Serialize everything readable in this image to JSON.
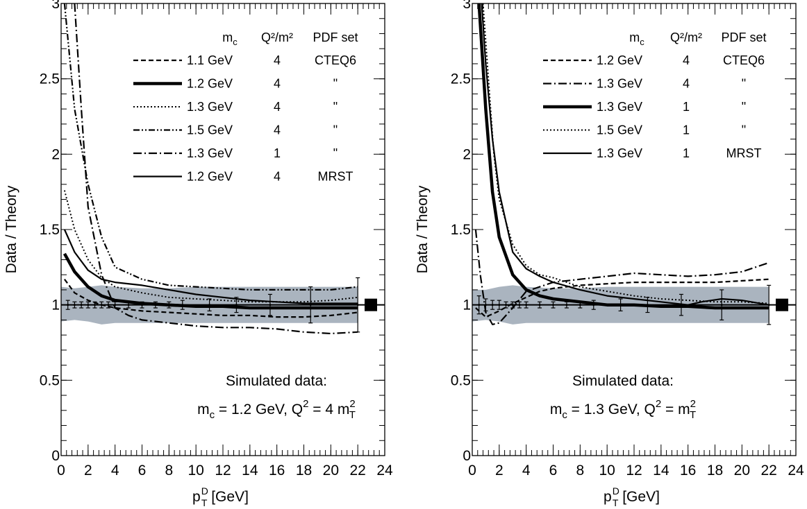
{
  "chart_data": [
    {
      "type": "line",
      "xlabel": "p_T^D [GeV]",
      "ylabel": "Data / Theory",
      "xlim": [
        0,
        24
      ],
      "ylim": [
        0,
        3
      ],
      "x_ticks": [
        "0",
        "2",
        "4",
        "6",
        "8",
        "10",
        "12",
        "14",
        "16",
        "18",
        "20",
        "22",
        "24"
      ],
      "y_ticks": [
        "0",
        "0.5",
        "1",
        "1.5",
        "2",
        "2.5",
        "3"
      ],
      "legend_headers": [
        "m",
        "Q²/m²",
        "PDF set"
      ],
      "legend_rows": [
        {
          "style": "dashed",
          "mc": "1.1 GeV",
          "q2": "4",
          "pdf": "CTEQ6"
        },
        {
          "style": "thick",
          "mc": "1.2 GeV",
          "q2": "4",
          "pdf": "\""
        },
        {
          "style": "dotted",
          "mc": "1.3 GeV",
          "q2": "4",
          "pdf": "\""
        },
        {
          "style": "dashdotdot",
          "mc": "1.5 GeV",
          "q2": "4",
          "pdf": "\""
        },
        {
          "style": "dashdot",
          "mc": "1.3 GeV",
          "q2": "1",
          "pdf": "\""
        },
        {
          "style": "solid",
          "mc": "1.2 GeV",
          "q2": "4",
          "pdf": "MRST"
        }
      ],
      "series": [
        {
          "style": "dashed",
          "x": [
            0.25,
            1,
            2,
            3,
            4,
            6,
            8,
            10,
            12,
            14,
            16,
            18,
            20,
            22
          ],
          "y": [
            1.17,
            1.08,
            1.03,
            1.0,
            0.98,
            0.96,
            0.95,
            0.94,
            0.93,
            0.93,
            0.92,
            0.92,
            0.93,
            0.95
          ]
        },
        {
          "style": "thick",
          "x": [
            0.25,
            1,
            2,
            3,
            4,
            6,
            8,
            10,
            12,
            14,
            16,
            18,
            20,
            22
          ],
          "y": [
            1.34,
            1.22,
            1.12,
            1.06,
            1.03,
            1.01,
            1.0,
            0.99,
            0.99,
            0.98,
            0.98,
            0.98,
            0.98,
            0.98
          ]
        },
        {
          "style": "dotted",
          "x": [
            0.25,
            1,
            2,
            3,
            4,
            6,
            8,
            10,
            12,
            14,
            16,
            18,
            20,
            22
          ],
          "y": [
            1.76,
            1.5,
            1.3,
            1.18,
            1.12,
            1.08,
            1.05,
            1.04,
            1.03,
            1.02,
            1.02,
            1.02,
            1.03,
            1.05
          ]
        },
        {
          "style": "dashdotdot",
          "x": [
            0.25,
            1,
            2,
            3,
            4,
            6,
            8,
            10,
            12,
            14,
            16,
            18,
            20,
            22
          ],
          "y": [
            3.0,
            2.3,
            1.8,
            1.45,
            1.25,
            1.17,
            1.13,
            1.12,
            1.11,
            1.1,
            1.1,
            1.1,
            1.1,
            1.12
          ]
        },
        {
          "style": "dashdot",
          "x": [
            1.0,
            1.5,
            2,
            3,
            4,
            5,
            6,
            8,
            10,
            12,
            14,
            16,
            18,
            20,
            22
          ],
          "y": [
            3.0,
            2.3,
            1.65,
            1.2,
            0.98,
            0.93,
            0.9,
            0.88,
            0.86,
            0.85,
            0.85,
            0.84,
            0.82,
            0.81,
            0.82
          ]
        },
        {
          "style": "solid",
          "x": [
            0.25,
            1,
            2,
            3,
            4,
            6,
            8,
            10,
            12,
            14,
            16,
            18,
            20,
            22
          ],
          "y": [
            1.5,
            1.35,
            1.23,
            1.17,
            1.15,
            1.13,
            1.1,
            1.07,
            1.05,
            1.03,
            1.02,
            1.01,
            1.01,
            1.01
          ]
        }
      ],
      "band": {
        "x": [
          0,
          1,
          2,
          3,
          4,
          6,
          8,
          10,
          12,
          14,
          16,
          18,
          20,
          22
        ],
        "upper": [
          1.12,
          1.11,
          1.12,
          1.13,
          1.12,
          1.11,
          1.11,
          1.12,
          1.12,
          1.12,
          1.12,
          1.12,
          1.12,
          1.12
        ],
        "lower": [
          0.89,
          0.9,
          0.89,
          0.87,
          0.88,
          0.88,
          0.88,
          0.88,
          0.88,
          0.88,
          0.88,
          0.88,
          0.88,
          0.88
        ]
      },
      "data_points": {
        "x": [
          0.5,
          1,
          1.5,
          2,
          2.5,
          3,
          3.5,
          4,
          5,
          6,
          7,
          8,
          9,
          11,
          13,
          15.5,
          18.5,
          22
        ],
        "y": [
          1,
          1,
          1,
          1,
          1,
          1,
          1,
          1,
          1,
          1,
          1,
          1,
          1,
          1,
          1,
          1,
          1,
          1
        ],
        "err": [
          0.03,
          0.02,
          0.02,
          0.02,
          0.02,
          0.02,
          0.02,
          0.02,
          0.02,
          0.02,
          0.02,
          0.02,
          0.03,
          0.04,
          0.05,
          0.07,
          0.12,
          0.18
        ]
      },
      "annotations": {
        "line1": "Simulated data:",
        "line2_pre": "m",
        "line2_mid": " = 1.2 GeV, Q",
        "line2_post": " = 4 m"
      }
    },
    {
      "type": "line",
      "xlabel": "p_T^D [GeV]",
      "ylabel": "Data / Theory",
      "xlim": [
        0,
        24
      ],
      "ylim": [
        0,
        3
      ],
      "x_ticks": [
        "0",
        "2",
        "4",
        "6",
        "8",
        "10",
        "12",
        "14",
        "16",
        "18",
        "20",
        "22",
        "24"
      ],
      "y_ticks": [
        "0",
        "0.5",
        "1",
        "1.5",
        "2",
        "2.5",
        "3"
      ],
      "legend_headers": [
        "m",
        "Q²/m²",
        "PDF set"
      ],
      "legend_rows": [
        {
          "style": "dashed",
          "mc": "1.2 GeV",
          "q2": "4",
          "pdf": "CTEQ6"
        },
        {
          "style": "dashdot",
          "mc": "1.3 GeV",
          "q2": "4",
          "pdf": "\""
        },
        {
          "style": "thick",
          "mc": "1.3 GeV",
          "q2": "1",
          "pdf": "\""
        },
        {
          "style": "dotted",
          "mc": "1.5 GeV",
          "q2": "1",
          "pdf": "\""
        },
        {
          "style": "solid",
          "mc": "1.3 GeV",
          "q2": "1",
          "pdf": "MRST"
        }
      ],
      "series": [
        {
          "style": "dashed",
          "x": [
            0.25,
            1,
            2,
            3,
            4,
            5,
            6,
            8,
            10,
            12,
            14,
            16,
            18,
            20,
            22
          ],
          "y": [
            0.98,
            0.92,
            0.96,
            1.01,
            1.05,
            1.09,
            1.11,
            1.13,
            1.14,
            1.15,
            1.15,
            1.15,
            1.15,
            1.16,
            1.17
          ]
        },
        {
          "style": "dashdot",
          "x": [
            0.25,
            0.6,
            1,
            1.5,
            2,
            3,
            4,
            6,
            8,
            10,
            12,
            14,
            16,
            18,
            20,
            22
          ],
          "y": [
            1.5,
            1.2,
            0.95,
            0.87,
            0.88,
            0.98,
            1.09,
            1.15,
            1.17,
            1.19,
            1.21,
            1.2,
            1.19,
            1.2,
            1.22,
            1.28
          ]
        },
        {
          "style": "thick",
          "x": [
            0.5,
            1,
            1.5,
            2,
            3,
            4,
            5,
            6,
            8,
            10,
            12,
            14,
            16,
            18,
            20,
            22
          ],
          "y": [
            3.0,
            2.3,
            1.75,
            1.45,
            1.2,
            1.1,
            1.06,
            1.04,
            1.02,
            1.0,
            1.0,
            0.99,
            0.99,
            0.98,
            0.98,
            0.98
          ]
        },
        {
          "style": "dotted",
          "x": [
            0.8,
            1.2,
            1.6,
            2,
            3,
            4,
            5,
            6,
            8,
            10,
            12,
            14,
            16,
            18,
            20,
            22
          ],
          "y": [
            3.0,
            2.5,
            2.0,
            1.7,
            1.4,
            1.26,
            1.2,
            1.18,
            1.12,
            1.09,
            1.06,
            1.04,
            1.03,
            1.02,
            1.02,
            1.01
          ]
        },
        {
          "style": "solid",
          "x": [
            0.7,
            1,
            1.5,
            2,
            3,
            4,
            5,
            6,
            8,
            10,
            12,
            14,
            16,
            17,
            18.5,
            20,
            22
          ],
          "y": [
            3.0,
            2.6,
            2.1,
            1.75,
            1.35,
            1.24,
            1.19,
            1.15,
            1.1,
            1.06,
            1.04,
            1.02,
            1.0,
            1.02,
            1.04,
            1.03,
            1.0
          ]
        }
      ],
      "band": {
        "x": [
          0,
          1,
          2,
          3,
          4,
          6,
          8,
          10,
          12,
          14,
          16,
          18,
          20,
          22
        ],
        "upper": [
          1.1,
          1.1,
          1.12,
          1.13,
          1.12,
          1.11,
          1.11,
          1.12,
          1.12,
          1.12,
          1.12,
          1.12,
          1.12,
          1.12
        ],
        "lower": [
          0.89,
          0.9,
          0.89,
          0.87,
          0.88,
          0.88,
          0.88,
          0.88,
          0.88,
          0.88,
          0.88,
          0.88,
          0.88,
          0.88
        ]
      },
      "data_points": {
        "x": [
          0.5,
          1,
          1.5,
          2,
          2.5,
          3,
          3.5,
          4,
          5,
          6,
          7,
          8,
          9,
          11,
          13,
          15.5,
          18.5,
          22
        ],
        "y": [
          1,
          1,
          1,
          1,
          1,
          1,
          1,
          1,
          1,
          1,
          1,
          1,
          1,
          1,
          1,
          1,
          1,
          1
        ],
        "err": [
          0.06,
          0.04,
          0.03,
          0.03,
          0.02,
          0.02,
          0.02,
          0.02,
          0.02,
          0.02,
          0.02,
          0.02,
          0.03,
          0.04,
          0.05,
          0.07,
          0.1,
          0.13
        ]
      },
      "annotations": {
        "line1": "Simulated data:",
        "line2_pre": "m",
        "line2_mid": " = 1.3 GeV, Q",
        "line2_post": " = m"
      }
    }
  ],
  "sub": {
    "c": "c",
    "T": "T",
    "sup2": "2",
    "pD": "p",
    "D": "D",
    "gev": " [GeV]"
  }
}
